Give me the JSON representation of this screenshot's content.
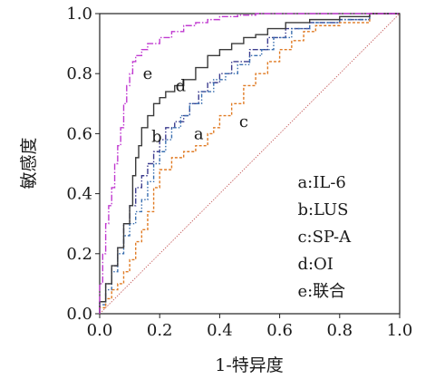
{
  "chart_data": {
    "type": "line",
    "title": "",
    "xlabel": "1-特异度",
    "ylabel": "敏感度",
    "xlim": [
      0,
      1
    ],
    "ylim": [
      0,
      1
    ],
    "xticks": [
      "0.0",
      "0.2",
      "0.4",
      "0.6",
      "0.8",
      "1.0"
    ],
    "yticks": [
      "0.0",
      "0.2",
      "0.4",
      "0.6",
      "0.8",
      "1.0"
    ],
    "grid": false,
    "legend_position": "bottom-right",
    "legend": [
      "a:IL-6",
      "b:LUS",
      "c:SP-A",
      "d:OI",
      "e:联合"
    ],
    "reference_line": {
      "x": [
        0,
        1
      ],
      "y": [
        0,
        1
      ],
      "color": "#c86464"
    },
    "series": [
      {
        "label": "a",
        "color": "#3d3d8f",
        "x": [
          0,
          0.02,
          0.04,
          0.06,
          0.08,
          0.1,
          0.12,
          0.14,
          0.16,
          0.18,
          0.2,
          0.22,
          0.25,
          0.28,
          0.3,
          0.33,
          0.36,
          0.4,
          0.44,
          0.5,
          0.56,
          0.62,
          0.7,
          0.8,
          0.9,
          1.0
        ],
        "y": [
          0,
          0.04,
          0.1,
          0.16,
          0.22,
          0.3,
          0.36,
          0.42,
          0.46,
          0.5,
          0.54,
          0.58,
          0.62,
          0.64,
          0.66,
          0.7,
          0.74,
          0.77,
          0.8,
          0.84,
          0.88,
          0.92,
          0.95,
          0.97,
          0.98,
          1.0
        ]
      },
      {
        "label": "b",
        "color": "#3a6fb0",
        "x": [
          0,
          0.02,
          0.04,
          0.06,
          0.08,
          0.1,
          0.12,
          0.14,
          0.16,
          0.18,
          0.2,
          0.22,
          0.24,
          0.27,
          0.3,
          0.34,
          0.38,
          0.42,
          0.46,
          0.5,
          0.54,
          0.58,
          0.64,
          0.7,
          0.8,
          0.9,
          1.0
        ],
        "y": [
          0,
          0.03,
          0.08,
          0.14,
          0.2,
          0.26,
          0.3,
          0.34,
          0.38,
          0.44,
          0.5,
          0.54,
          0.58,
          0.62,
          0.66,
          0.7,
          0.74,
          0.78,
          0.8,
          0.83,
          0.86,
          0.88,
          0.92,
          0.95,
          0.97,
          0.98,
          1.0
        ]
      },
      {
        "label": "c",
        "color": "#e07b24",
        "x": [
          0,
          0.02,
          0.04,
          0.06,
          0.08,
          0.1,
          0.12,
          0.14,
          0.16,
          0.18,
          0.2,
          0.24,
          0.28,
          0.32,
          0.36,
          0.38,
          0.4,
          0.44,
          0.48,
          0.52,
          0.56,
          0.6,
          0.64,
          0.68,
          0.72,
          0.8,
          0.9,
          1.0
        ],
        "y": [
          0,
          0.02,
          0.05,
          0.08,
          0.1,
          0.14,
          0.18,
          0.24,
          0.28,
          0.34,
          0.42,
          0.48,
          0.52,
          0.54,
          0.56,
          0.6,
          0.62,
          0.66,
          0.7,
          0.76,
          0.8,
          0.84,
          0.88,
          0.91,
          0.94,
          0.96,
          0.97,
          1.0
        ]
      },
      {
        "label": "d",
        "color": "#3a3a3a",
        "x": [
          0,
          0.02,
          0.04,
          0.06,
          0.08,
          0.1,
          0.11,
          0.12,
          0.13,
          0.14,
          0.16,
          0.18,
          0.2,
          0.22,
          0.25,
          0.28,
          0.32,
          0.36,
          0.4,
          0.44,
          0.48,
          0.52,
          0.56,
          0.62,
          0.7,
          0.8,
          0.9,
          1.0
        ],
        "y": [
          0,
          0.04,
          0.1,
          0.16,
          0.22,
          0.3,
          0.36,
          0.46,
          0.52,
          0.56,
          0.62,
          0.66,
          0.7,
          0.72,
          0.74,
          0.76,
          0.78,
          0.82,
          0.86,
          0.88,
          0.9,
          0.92,
          0.93,
          0.95,
          0.97,
          0.98,
          0.99,
          1.0
        ]
      },
      {
        "label": "e",
        "color": "#c03ad0",
        "x": [
          0,
          0.01,
          0.02,
          0.03,
          0.04,
          0.05,
          0.06,
          0.07,
          0.08,
          0.09,
          0.1,
          0.11,
          0.12,
          0.14,
          0.16,
          0.2,
          0.24,
          0.28,
          0.32,
          0.36,
          0.4,
          0.46,
          0.52,
          0.6,
          0.7,
          0.8,
          0.9,
          1.0
        ],
        "y": [
          0,
          0.1,
          0.2,
          0.3,
          0.36,
          0.42,
          0.5,
          0.56,
          0.62,
          0.7,
          0.76,
          0.8,
          0.84,
          0.86,
          0.88,
          0.9,
          0.92,
          0.94,
          0.96,
          0.97,
          0.98,
          0.99,
          0.995,
          1.0,
          1.0,
          1.0,
          1.0,
          1.0
        ]
      }
    ],
    "curve_labels": [
      {
        "text": "e",
        "x": 0.16,
        "y": 0.8
      },
      {
        "text": "d",
        "x": 0.27,
        "y": 0.76
      },
      {
        "text": "b",
        "x": 0.19,
        "y": 0.59
      },
      {
        "text": "a",
        "x": 0.33,
        "y": 0.6
      },
      {
        "text": "c",
        "x": 0.48,
        "y": 0.64
      }
    ]
  }
}
